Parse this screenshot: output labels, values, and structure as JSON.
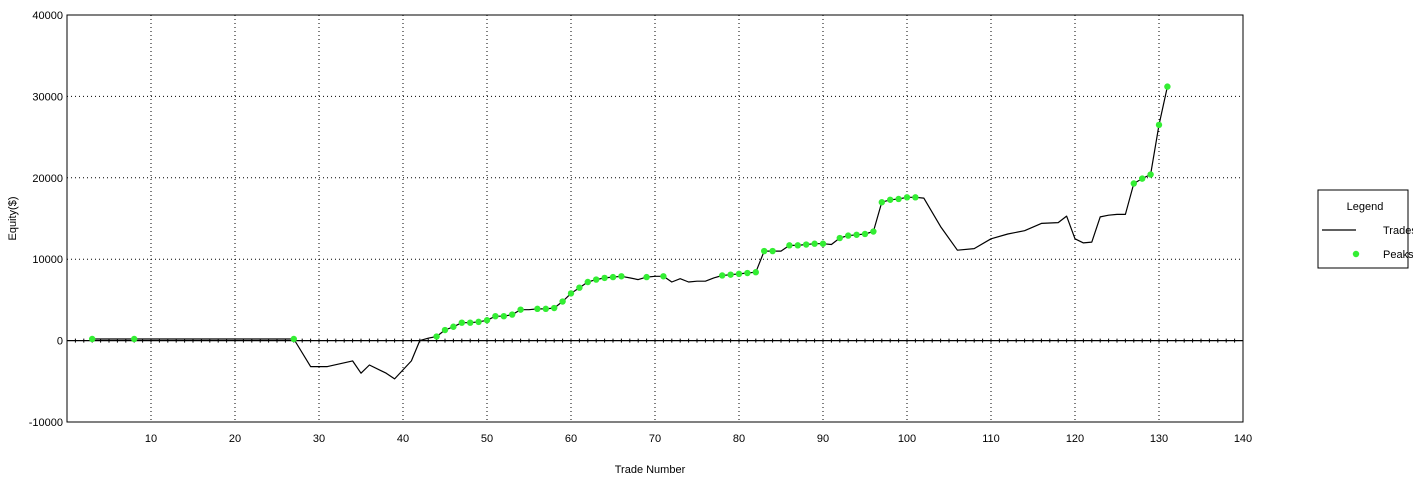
{
  "chart_data": {
    "type": "line",
    "title": "",
    "xlabel": "Trade Number",
    "ylabel": "Equity($)",
    "xlim": [
      0,
      140
    ],
    "ylim": [
      -10000,
      40000
    ],
    "x_ticks": [
      10,
      20,
      30,
      40,
      50,
      60,
      70,
      80,
      90,
      100,
      110,
      120,
      130,
      140
    ],
    "y_ticks": [
      -10000,
      0,
      10000,
      20000,
      30000,
      40000
    ],
    "grid": true,
    "legend": {
      "title": "Legend",
      "position": "right",
      "entries": [
        "Trades",
        "Peaks"
      ]
    },
    "colors": {
      "trades": "#000000",
      "peaks": "#33ee33",
      "grid": "#000000"
    },
    "series": [
      {
        "name": "Trades",
        "type": "line",
        "x": [
          3,
          8,
          10,
          27,
          29,
          31,
          34,
          35,
          36,
          38,
          39,
          41,
          42,
          43,
          44,
          45,
          46,
          47,
          48,
          49,
          50,
          51,
          52,
          53,
          54,
          55,
          56,
          57,
          58,
          59,
          60,
          61,
          62,
          63,
          64,
          65,
          66,
          67,
          68,
          69,
          70,
          71,
          72,
          73,
          74,
          75,
          76,
          77,
          78,
          79,
          80,
          81,
          82,
          83,
          84,
          85,
          86,
          87,
          88,
          89,
          90,
          91,
          92,
          93,
          94,
          95,
          96,
          97,
          98,
          99,
          100,
          101,
          102,
          104,
          106,
          108,
          110,
          112,
          114,
          116,
          118,
          119,
          120,
          121,
          122,
          123,
          124,
          125,
          126,
          127,
          128,
          129,
          130,
          131
        ],
        "y": [
          200,
          200,
          200,
          200,
          -3200,
          -3200,
          -2500,
          -4000,
          -3000,
          -4000,
          -4700,
          -2500,
          0,
          300,
          500,
          1300,
          1700,
          2200,
          2200,
          2300,
          2500,
          3000,
          3000,
          3200,
          3800,
          3800,
          3900,
          3900,
          4000,
          4800,
          5800,
          6500,
          7200,
          7500,
          7700,
          7800,
          7900,
          7700,
          7500,
          7800,
          7900,
          7900,
          7200,
          7600,
          7200,
          7300,
          7300,
          7700,
          8000,
          8100,
          8200,
          8300,
          8400,
          11000,
          11000,
          11000,
          11700,
          11700,
          11800,
          11900,
          11900,
          11800,
          12600,
          12900,
          13000,
          13100,
          13400,
          17000,
          17300,
          17400,
          17600,
          17600,
          17500,
          14000,
          11100,
          11300,
          12500,
          13100,
          13500,
          14400,
          14500,
          15300,
          12500,
          12000,
          12100,
          15200,
          15400,
          15500,
          15500,
          19300,
          19900,
          20400,
          26500,
          31200
        ]
      },
      {
        "name": "Peaks",
        "type": "scatter",
        "x": [
          3,
          8,
          27,
          44,
          45,
          46,
          47,
          48,
          49,
          50,
          51,
          52,
          53,
          54,
          56,
          57,
          58,
          59,
          60,
          61,
          62,
          63,
          64,
          65,
          66,
          69,
          71,
          78,
          79,
          80,
          81,
          82,
          83,
          84,
          86,
          87,
          88,
          89,
          90,
          92,
          93,
          94,
          95,
          96,
          97,
          98,
          99,
          100,
          101,
          127,
          128,
          129,
          130,
          131
        ],
        "y": [
          200,
          200,
          200,
          500,
          1300,
          1700,
          2200,
          2200,
          2300,
          2500,
          3000,
          3000,
          3200,
          3800,
          3900,
          3900,
          4000,
          4800,
          5800,
          6500,
          7200,
          7500,
          7700,
          7800,
          7900,
          7800,
          7900,
          8000,
          8100,
          8200,
          8300,
          8400,
          11000,
          11000,
          11700,
          11700,
          11800,
          11900,
          11900,
          12600,
          12900,
          13000,
          13100,
          13400,
          17000,
          17300,
          17400,
          17600,
          17600,
          19300,
          19900,
          20400,
          26500,
          31200
        ]
      }
    ]
  }
}
